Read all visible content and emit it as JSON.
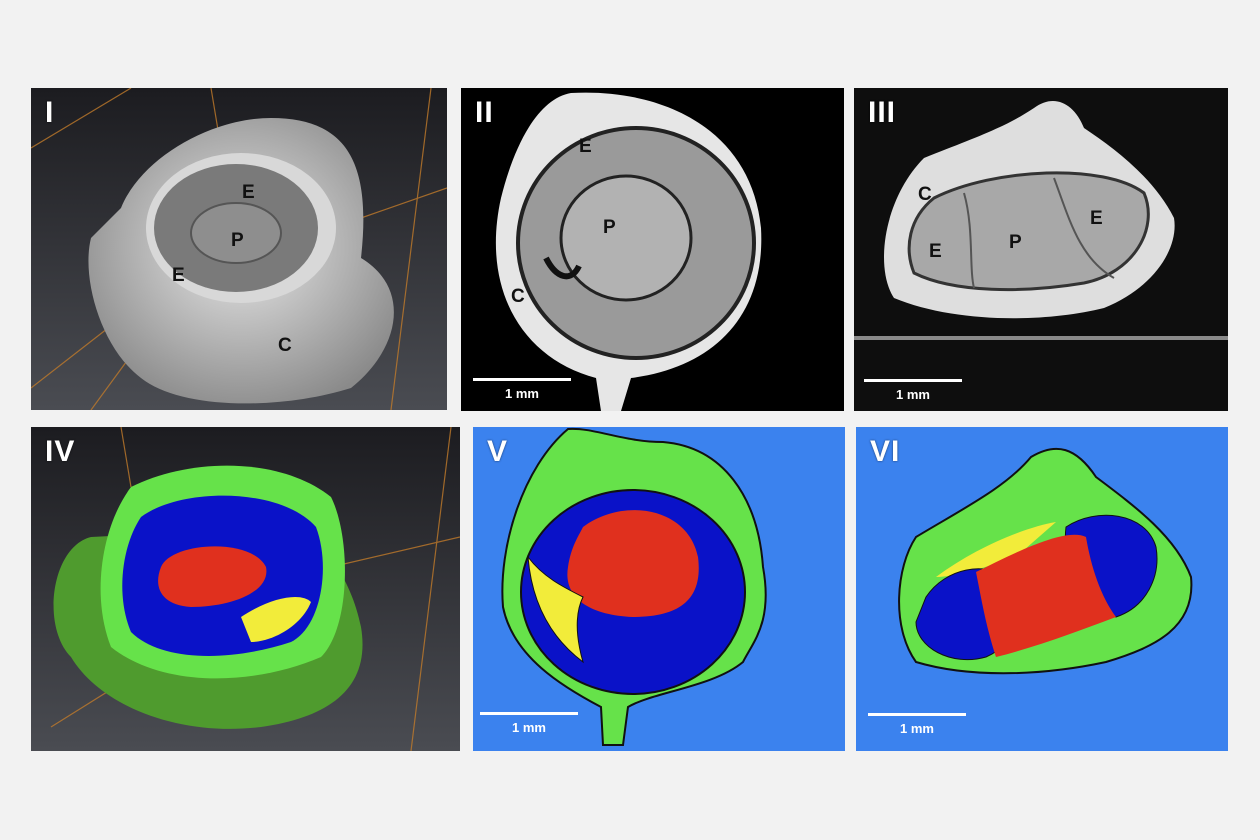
{
  "panels": [
    {
      "id": "I"
    },
    {
      "id": "II"
    },
    {
      "id": "III"
    },
    {
      "id": "IV"
    },
    {
      "id": "V"
    },
    {
      "id": "VI"
    }
  ],
  "region_labels": {
    "I": {
      "enamel_1": "E",
      "enamel_2": "E",
      "pulp": "P",
      "cement": "C"
    },
    "II": {
      "enamel": "E",
      "pulp": "P",
      "cement": "C"
    },
    "III": {
      "cement": "C",
      "enamel_1": "E",
      "pulp": "P",
      "enamel_2": "E"
    }
  },
  "scale_bar": {
    "label": "1 mm"
  },
  "colors": {
    "background": "#f2f2f2",
    "segment_background": "#3b82ee",
    "cement": "#66e24a",
    "enamel": "#0a12c8",
    "pulp": "#e0301e",
    "void": "#f2ec3a"
  }
}
